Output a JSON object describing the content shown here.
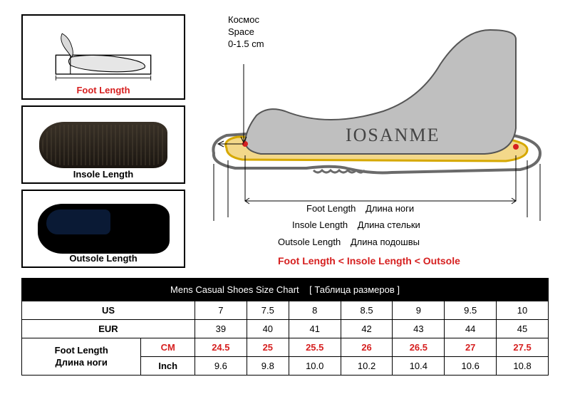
{
  "leftPanel": {
    "foot_label": "Foot Length",
    "foot_label_color": "#d62020",
    "insole_label": "Insole Length",
    "insole_label_color": "#000000",
    "outsole_label": "Outsole Length",
    "outsole_label_color": "#000000"
  },
  "diagram": {
    "space_ru": "Космос",
    "space_en": "Space",
    "space_range": "0-1.5 cm",
    "brand": "IOSANME",
    "foot_color": "#bfbfbf",
    "insole_fill": "#f3d88a",
    "insole_stroke": "#d6a800",
    "outsole_stroke": "#6a6a6a",
    "tick_color": "#d62020",
    "foot_length_label": "Foot Length",
    "foot_length_ru": "Длина ноги",
    "insole_length_label": "Insole Length",
    "insole_length_ru": "Длина стельки",
    "outsole_length_label": "Outsole Length",
    "outsole_length_ru": "Длина подошвы",
    "inequality": "Foot Length < Insole Length < Outsole"
  },
  "table": {
    "title": "Mens Casual Shoes Size Chart",
    "title_ru": "[ Таблица размеров ]",
    "headers": {
      "us": "US",
      "eur": "EUR",
      "foot_length": "Foot Length",
      "foot_length_ru": "Длина ноги",
      "cm": "CM",
      "inch": "Inch"
    },
    "us_values": [
      "7",
      "7.5",
      "8",
      "8.5",
      "9",
      "9.5",
      "10"
    ],
    "eur_values": [
      "39",
      "40",
      "41",
      "42",
      "43",
      "44",
      "45"
    ],
    "cm_values": [
      "24.5",
      "25",
      "25.5",
      "26",
      "26.5",
      "27",
      "27.5"
    ],
    "inch_values": [
      "9.6",
      "9.8",
      "10.0",
      "10.2",
      "10.4",
      "10.6",
      "10.8"
    ]
  }
}
